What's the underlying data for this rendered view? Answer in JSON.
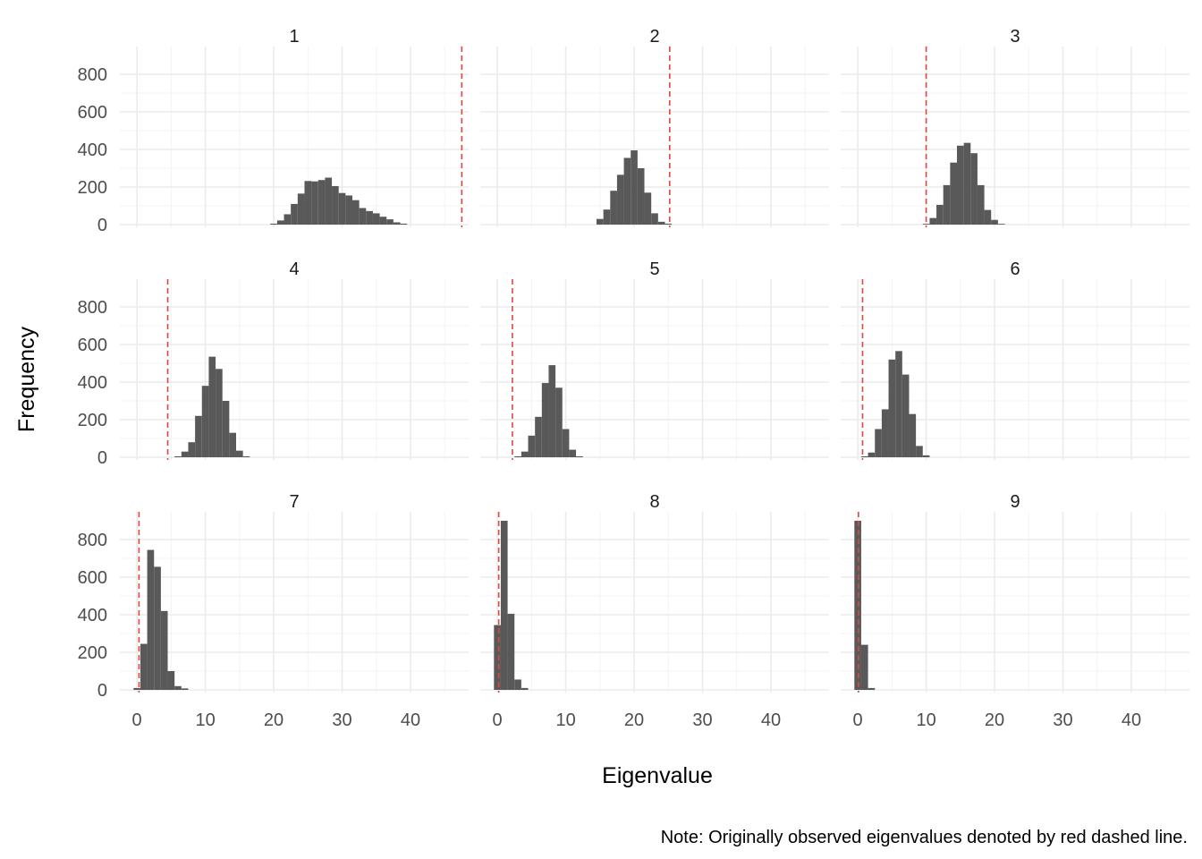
{
  "chart_data": {
    "type": "histogram",
    "layout": "facet_wrap 3x3",
    "xlabel": "Eigenvalue",
    "ylabel": "Frequency",
    "caption": "Note: Originally observed eigenvalues denoted by red dashed line.",
    "xlim": [
      -2.5,
      48.5
    ],
    "ylim": [
      0,
      800
    ],
    "x_ticks": [
      0,
      10,
      20,
      30,
      40
    ],
    "y_ticks": [
      0,
      200,
      400,
      600,
      800
    ],
    "bin_width": 1,
    "colors": {
      "bar": "#595959",
      "observed_line": "#E0463C",
      "grid": "#EBEBEB"
    },
    "panels": [
      {
        "label": "1",
        "observed": 47.5,
        "start": 19.5,
        "counts": [
          5,
          22,
          55,
          110,
          165,
          232,
          230,
          237,
          250,
          205,
          168,
          155,
          130,
          88,
          72,
          60,
          42,
          28,
          12,
          5
        ]
      },
      {
        "label": "2",
        "observed": 25.2,
        "start": 14.5,
        "counts": [
          30,
          80,
          180,
          265,
          355,
          395,
          300,
          170,
          60,
          15,
          5
        ]
      },
      {
        "label": "3",
        "observed": 10.0,
        "start": 9.5,
        "counts": [
          4,
          35,
          105,
          210,
          330,
          420,
          435,
          380,
          210,
          78,
          25,
          4
        ]
      },
      {
        "label": "4",
        "observed": 4.5,
        "start": 5.5,
        "counts": [
          5,
          30,
          80,
          220,
          380,
          535,
          470,
          300,
          130,
          35,
          5
        ]
      },
      {
        "label": "5",
        "observed": 2.2,
        "start": 2.5,
        "counts": [
          5,
          30,
          115,
          215,
          395,
          490,
          370,
          150,
          40,
          5
        ]
      },
      {
        "label": "6",
        "observed": 0.7,
        "start": 0.5,
        "counts": [
          5,
          25,
          150,
          255,
          520,
          565,
          440,
          230,
          60,
          10
        ]
      },
      {
        "label": "7",
        "observed": 0.3,
        "start": -0.5,
        "counts": [
          10,
          245,
          745,
          655,
          420,
          100,
          20,
          8
        ]
      },
      {
        "label": "8",
        "observed": 0.2,
        "start": -0.5,
        "counts": [
          345,
          900,
          405,
          55,
          10
        ]
      },
      {
        "label": "9",
        "observed": 0.1,
        "start": -0.5,
        "counts": [
          900,
          240,
          10
        ]
      }
    ]
  }
}
